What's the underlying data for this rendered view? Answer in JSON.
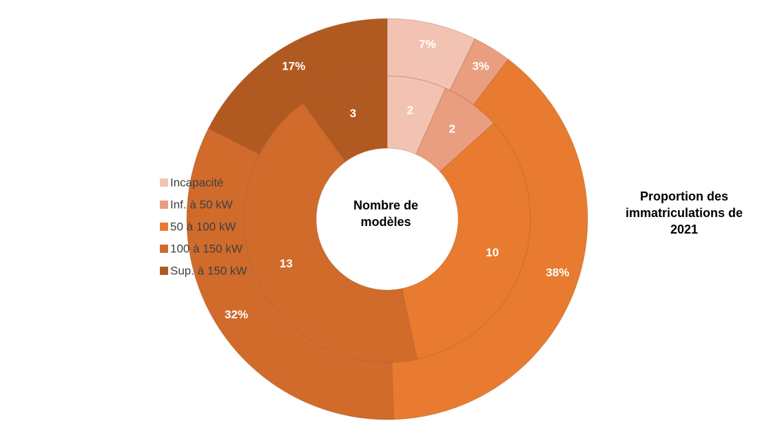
{
  "chart_data": {
    "type": "donut",
    "categories": [
      "Incapacité",
      "Inf. à 50 kW",
      "50 à 100 kW",
      "100 à 150 kW",
      "Sup. à 150 kW"
    ],
    "colors": [
      "#f2c3b3",
      "#e99e7f",
      "#e87b2f",
      "#d06b2b",
      "#b05a22"
    ],
    "series": [
      {
        "name": "Nombre de modèles",
        "values": [
          2,
          2,
          10,
          13,
          3
        ]
      },
      {
        "name": "Proportion des immatriculations de 2021",
        "values": [
          7,
          3,
          38,
          32,
          17
        ],
        "value_labels": [
          "7%",
          "3%",
          "38%",
          "32%",
          "17%"
        ]
      }
    ],
    "legend": "left"
  }
}
